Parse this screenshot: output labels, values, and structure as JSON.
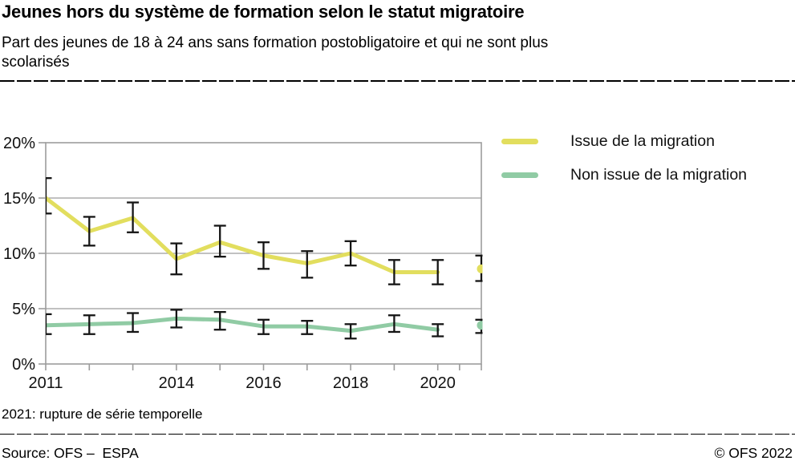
{
  "header": {
    "title": "Jeunes hors du système de formation selon le statut migratoire",
    "subtitle_line_1": "Part des jeunes de 18 à 24 ans sans formation postobligatoire et qui ne sont plus",
    "subtitle_line_2": "scolarisés"
  },
  "legend": [
    {
      "label": "Issue de la migration",
      "color": "#e2de5e"
    },
    {
      "label": "Non issue de la migration",
      "color": "#90cba4"
    }
  ],
  "footnote": "2021: rupture de série temporelle",
  "footer": {
    "source": "Source: OFS –  ESPA",
    "copyright": "© OFS 2022"
  },
  "colors": {
    "frame_gray": "#9c9c9c",
    "grid_gray": "#9c9c9c",
    "error_bar": "#151515",
    "axis_text": "#111111"
  },
  "chart_data": {
    "type": "line",
    "title": "Jeunes hors du système de formation selon le statut migratoire",
    "ylabel": "",
    "xlabel": "",
    "grid": "horizontal",
    "legend_position": "top-right",
    "error_bars": true,
    "xlim": [
      2011,
      2021
    ],
    "ylim": [
      0,
      20
    ],
    "yticks": [
      0,
      5,
      10,
      15,
      20
    ],
    "ytick_labels": [
      "0%",
      "5%",
      "10%",
      "15%",
      "20%"
    ],
    "xtick_years": [
      2011,
      2012,
      2013,
      2014,
      2015,
      2016,
      2017,
      2018,
      2019,
      2020,
      2020.5,
      2021
    ],
    "xtick_labels": [
      "2011",
      "2014",
      "2016",
      "2018",
      "2020"
    ],
    "xtick_label_years": [
      2011,
      2014,
      2016,
      2018,
      2020
    ],
    "x": [
      2011,
      2012,
      2013,
      2014,
      2015,
      2016,
      2017,
      2018,
      2019,
      2020
    ],
    "series": [
      {
        "name": "Issue de la migration",
        "color": "#e2de5e",
        "values": [
          15.0,
          12.0,
          13.2,
          9.5,
          11.0,
          9.8,
          9.1,
          10.0,
          8.3,
          8.3
        ],
        "ci_low": [
          13.6,
          10.7,
          11.9,
          8.1,
          9.7,
          8.6,
          7.8,
          8.9,
          7.2,
          7.2
        ],
        "ci_high": [
          16.8,
          13.3,
          14.6,
          10.9,
          12.5,
          11.0,
          10.2,
          11.1,
          9.4,
          9.4
        ],
        "break_point_2021": {
          "x": 2021,
          "value": 8.6,
          "ci_low": 7.5,
          "ci_high": 9.8
        }
      },
      {
        "name": "Non issue de la migration",
        "color": "#90cba4",
        "values": [
          3.5,
          3.6,
          3.7,
          4.1,
          4.0,
          3.4,
          3.4,
          3.0,
          3.6,
          3.1
        ],
        "ci_low": [
          2.7,
          2.7,
          2.9,
          3.3,
          3.1,
          2.7,
          2.7,
          2.3,
          2.9,
          2.5
        ],
        "ci_high": [
          4.5,
          4.4,
          4.6,
          4.9,
          4.7,
          4.0,
          3.9,
          3.6,
          4.4,
          3.6
        ],
        "break_point_2021": {
          "x": 2021,
          "value": 3.5,
          "ci_low": 2.8,
          "ci_high": 4.0
        }
      }
    ],
    "annotation": "2021: rupture de série temporelle"
  }
}
